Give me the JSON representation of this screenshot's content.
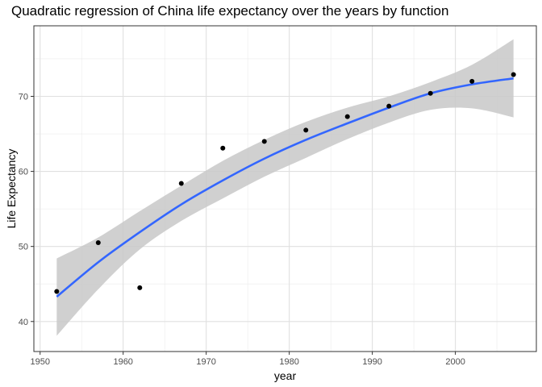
{
  "chart_data": {
    "type": "scatter",
    "title": "Quadratic regression of China life expectancy over the years by function",
    "xlabel": "year",
    "ylabel": "Life Expectancy",
    "xlim": [
      1949.25,
      2009.75
    ],
    "ylim": [
      36.0,
      79.4
    ],
    "x_ticks": [
      1950,
      1960,
      1970,
      1980,
      1990,
      2000
    ],
    "y_ticks": [
      40,
      50,
      60,
      70
    ],
    "grid": true,
    "points": [
      {
        "x": 1952,
        "y": 44.0
      },
      {
        "x": 1957,
        "y": 50.5
      },
      {
        "x": 1962,
        "y": 44.5
      },
      {
        "x": 1967,
        "y": 58.4
      },
      {
        "x": 1972,
        "y": 63.1
      },
      {
        "x": 1977,
        "y": 64.0
      },
      {
        "x": 1982,
        "y": 65.5
      },
      {
        "x": 1987,
        "y": 67.3
      },
      {
        "x": 1992,
        "y": 68.7
      },
      {
        "x": 1997,
        "y": 70.4
      },
      {
        "x": 2002,
        "y": 72.0
      },
      {
        "x": 2007,
        "y": 72.9
      }
    ],
    "fit": {
      "method": "quadratic",
      "curve": [
        {
          "x": 1952,
          "y": 43.3
        },
        {
          "x": 1957,
          "y": 47.9
        },
        {
          "x": 1962,
          "y": 51.9
        },
        {
          "x": 1967,
          "y": 55.6
        },
        {
          "x": 1972,
          "y": 58.8
        },
        {
          "x": 1977,
          "y": 61.7
        },
        {
          "x": 1982,
          "y": 64.2
        },
        {
          "x": 1987,
          "y": 66.4
        },
        {
          "x": 1992,
          "y": 68.5
        },
        {
          "x": 1997,
          "y": 70.4
        },
        {
          "x": 2002,
          "y": 71.6
        },
        {
          "x": 2007,
          "y": 72.4
        }
      ],
      "band_upper": [
        48.4,
        51.2,
        54.7,
        58.1,
        61.4,
        64.2,
        66.6,
        68.5,
        70.0,
        71.9,
        74.2,
        77.6
      ],
      "band_lower": [
        38.1,
        44.3,
        49.6,
        53.4,
        56.4,
        59.3,
        61.8,
        64.3,
        66.5,
        68.2,
        68.4,
        67.2
      ],
      "line_color": "#3366FF",
      "band_color": "#C8C8C8"
    },
    "point_color": "#000000"
  }
}
